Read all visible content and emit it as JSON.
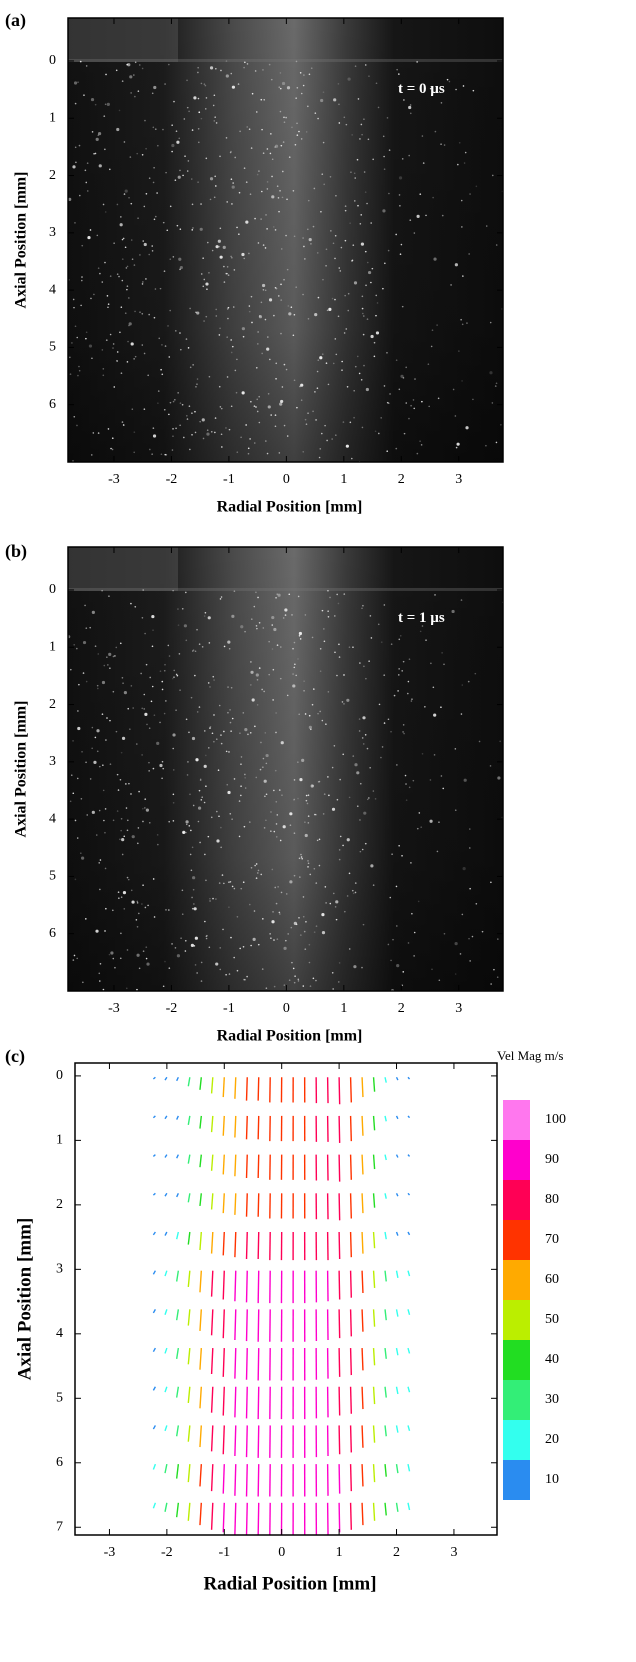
{
  "chart_data": [
    {
      "type": "image",
      "panel_label": "(a)",
      "annotation": "t = 0 µs",
      "xlabel": "Radial Position [mm]",
      "ylabel": "Axial Position [mm]",
      "xlim": [
        -3.8,
        3.77
      ],
      "xticks": [
        -3,
        -2,
        -1,
        0,
        1,
        2,
        3
      ],
      "ylim": [
        -0.75,
        7
      ],
      "yticks": [
        0,
        1,
        2,
        3,
        4,
        5,
        6
      ]
    },
    {
      "type": "image",
      "panel_label": "(b)",
      "annotation": "t = 1 µs",
      "xlabel": "Radial Position [mm]",
      "ylabel": "Axial Position [mm]",
      "xlim": [
        -3.8,
        3.77
      ],
      "xticks": [
        -3,
        -2,
        -1,
        0,
        1,
        2,
        3
      ],
      "ylim": [
        -0.75,
        7
      ],
      "yticks": [
        0,
        1,
        2,
        3,
        4,
        5,
        6
      ]
    },
    {
      "type": "vector_field",
      "panel_label": "(c)",
      "xlabel": "Radial Position [mm]",
      "ylabel": "Axial Position [mm]",
      "xlim": [
        -3.6,
        3.75
      ],
      "xticks": [
        -3,
        -2,
        -1,
        0,
        1,
        2,
        3
      ],
      "ylim": [
        -0.2,
        7.12
      ],
      "yticks": [
        0,
        1,
        2,
        3,
        4,
        5,
        6,
        7
      ],
      "x": [
        -2.2,
        -2.0,
        -1.8,
        -1.6,
        -1.4,
        -1.2,
        -1.0,
        -0.8,
        -0.6,
        -0.4,
        -0.2,
        0,
        0.2,
        0.4,
        0.6,
        0.8,
        1.0,
        1.2,
        1.4,
        1.6,
        1.8,
        2.0,
        2.2
      ],
      "y": [
        0.3,
        0.9,
        1.5,
        2.1,
        2.7,
        3.3,
        3.9,
        4.5,
        5.1,
        5.7,
        6.3,
        6.9
      ],
      "values": [
        [
          5,
          8,
          10,
          25,
          35,
          45,
          55,
          60,
          65,
          65,
          70,
          70,
          70,
          70,
          72,
          72,
          75,
          70,
          55,
          40,
          15,
          8,
          5
        ],
        [
          5,
          8,
          10,
          25,
          35,
          45,
          55,
          60,
          65,
          65,
          70,
          70,
          70,
          70,
          72,
          72,
          75,
          70,
          55,
          40,
          15,
          8,
          5
        ],
        [
          5,
          8,
          10,
          25,
          35,
          45,
          55,
          60,
          65,
          65,
          70,
          70,
          70,
          70,
          72,
          72,
          75,
          70,
          55,
          40,
          15,
          8,
          5
        ],
        [
          5,
          8,
          10,
          25,
          35,
          45,
          55,
          60,
          65,
          65,
          70,
          70,
          70,
          70,
          72,
          72,
          75,
          70,
          55,
          40,
          15,
          8,
          5
        ],
        [
          8,
          10,
          20,
          35,
          50,
          60,
          65,
          70,
          75,
          75,
          78,
          78,
          78,
          78,
          78,
          78,
          75,
          70,
          60,
          45,
          20,
          10,
          8
        ],
        [
          10,
          15,
          30,
          45,
          60,
          72,
          80,
          85,
          88,
          90,
          90,
          90,
          90,
          90,
          88,
          85,
          80,
          75,
          62,
          48,
          30,
          20,
          15
        ],
        [
          10,
          15,
          30,
          45,
          60,
          72,
          80,
          85,
          88,
          90,
          90,
          90,
          90,
          90,
          88,
          85,
          80,
          75,
          62,
          48,
          30,
          20,
          15
        ],
        [
          10,
          15,
          30,
          45,
          60,
          72,
          80,
          85,
          88,
          90,
          90,
          90,
          90,
          90,
          88,
          85,
          80,
          75,
          62,
          48,
          30,
          20,
          15
        ],
        [
          10,
          15,
          30,
          45,
          60,
          72,
          80,
          85,
          88,
          90,
          90,
          90,
          90,
          90,
          88,
          85,
          80,
          75,
          62,
          48,
          30,
          20,
          15
        ],
        [
          10,
          15,
          30,
          45,
          60,
          72,
          80,
          85,
          88,
          90,
          90,
          90,
          90,
          90,
          88,
          85,
          80,
          75,
          62,
          48,
          30,
          20,
          15
        ],
        [
          15,
          25,
          40,
          50,
          62,
          75,
          82,
          88,
          90,
          90,
          90,
          90,
          90,
          90,
          90,
          88,
          82,
          75,
          62,
          50,
          35,
          25,
          20
        ],
        [
          15,
          25,
          40,
          50,
          62,
          75,
          82,
          88,
          90,
          90,
          90,
          90,
          90,
          90,
          90,
          88,
          82,
          75,
          62,
          50,
          35,
          25,
          20
        ]
      ],
      "colorbar": {
        "title": "Vel Mag m/s",
        "levels": [
          10,
          20,
          30,
          40,
          50,
          60,
          70,
          80,
          90,
          100
        ],
        "colors": [
          "#2a8cf0",
          "#33ffee",
          "#33ee77",
          "#22dd22",
          "#bbee00",
          "#ffaa00",
          "#ff3300",
          "#ff0055",
          "#ff00cc",
          "#ff77ee"
        ]
      }
    }
  ]
}
